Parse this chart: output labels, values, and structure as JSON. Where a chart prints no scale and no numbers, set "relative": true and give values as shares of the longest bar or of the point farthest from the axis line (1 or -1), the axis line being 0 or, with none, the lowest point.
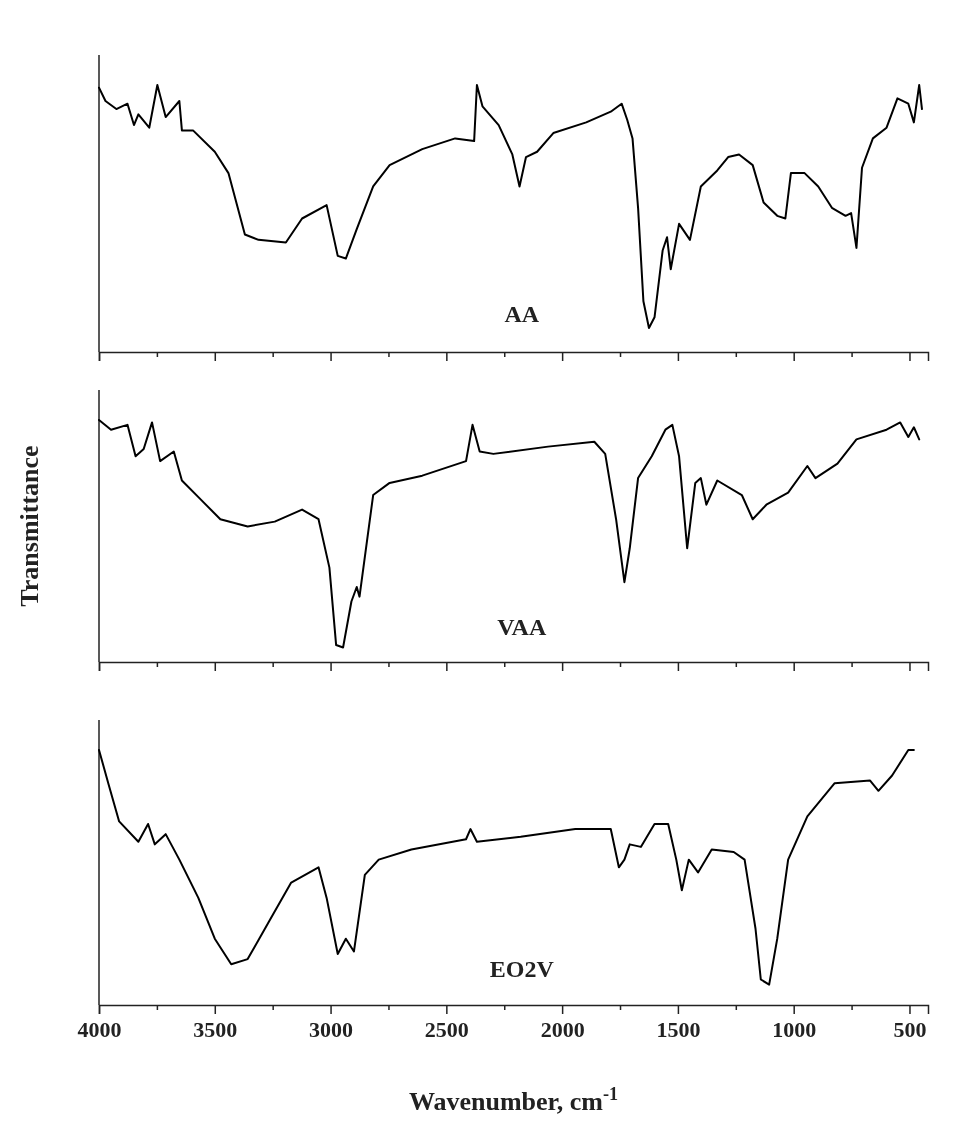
{
  "chart_data": [
    {
      "type": "line",
      "relative": true,
      "tick_labels": false,
      "xlim": [
        4000,
        420
      ],
      "xticks": [
        4000,
        {
          "value": 3750,
          "label": null
        },
        3500,
        {
          "value": 3250,
          "label": null
        },
        3000,
        {
          "value": 2750,
          "label": null
        },
        2500,
        {
          "value": 2250,
          "label": null
        },
        2000,
        {
          "value": 1750,
          "label": null
        },
        1500,
        {
          "value": 1250,
          "label": null
        },
        1000,
        {
          "value": 750,
          "label": null
        },
        500
      ],
      "x": [
        4000,
        3972,
        3925,
        3877,
        3849,
        3830,
        3783,
        3748,
        3712,
        3653,
        3642,
        3594,
        3500,
        3441,
        3370,
        3311,
        3193,
        3123,
        3017,
        2969,
        2934,
        2887,
        2816,
        2745,
        2604,
        2462,
        2380,
        2368,
        2344,
        2274,
        2215,
        2184,
        2156,
        2108,
        2038,
        1896,
        1790,
        1743,
        1719,
        1696,
        1672,
        1649,
        1625,
        1601,
        1566,
        1547,
        1531,
        1495,
        1448,
        1401,
        1330,
        1283,
        1236,
        1177,
        1130,
        1071,
        1036,
        1012,
        953,
        894,
        835,
        776,
        752,
        729,
        705,
        658,
        599,
        552,
        505,
        481,
        458,
        446
      ],
      "series": [
        {
          "name": "AA",
          "color": "#000000",
          "values": [
            0.99,
            0.94,
            0.91,
            0.93,
            0.85,
            0.89,
            0.84,
            1.0,
            0.88,
            0.94,
            0.83,
            0.83,
            0.75,
            0.67,
            0.44,
            0.42,
            0.41,
            0.5,
            0.55,
            0.36,
            0.35,
            0.46,
            0.62,
            0.7,
            0.76,
            0.8,
            0.79,
            1.0,
            0.92,
            0.85,
            0.74,
            0.62,
            0.73,
            0.75,
            0.82,
            0.86,
            0.9,
            0.93,
            0.87,
            0.8,
            0.54,
            0.19,
            0.09,
            0.13,
            0.38,
            0.43,
            0.31,
            0.48,
            0.42,
            0.62,
            0.68,
            0.73,
            0.74,
            0.7,
            0.56,
            0.51,
            0.5,
            0.67,
            0.67,
            0.62,
            0.54,
            0.51,
            0.52,
            0.39,
            0.69,
            0.8,
            0.84,
            0.95,
            0.93,
            0.86,
            1.0,
            0.91
          ]
        }
      ]
    },
    {
      "type": "line",
      "relative": true,
      "tick_labels": false,
      "xlim": [
        4000,
        420
      ],
      "ylabel": "Transmittance",
      "xticks": [
        4000,
        {
          "value": 3750,
          "label": null
        },
        3500,
        {
          "value": 3250,
          "label": null
        },
        3000,
        {
          "value": 2750,
          "label": null
        },
        2500,
        {
          "value": 2250,
          "label": null
        },
        2000,
        {
          "value": 1750,
          "label": null
        },
        1500,
        {
          "value": 1250,
          "label": null
        },
        1000,
        {
          "value": 750,
          "label": null
        },
        500
      ],
      "x": [
        4000,
        3948,
        3877,
        3842,
        3807,
        3771,
        3736,
        3677,
        3642,
        3559,
        3476,
        3358,
        3241,
        3123,
        3052,
        3005,
        2976,
        2946,
        2910,
        2887,
        2875,
        2816,
        2745,
        2604,
        2415,
        2387,
        2356,
        2297,
        2061,
        1861,
        1814,
        1767,
        1731,
        1708,
        1672,
        1613,
        1554,
        1524,
        1495,
        1460,
        1425,
        1401,
        1377,
        1330,
        1224,
        1177,
        1118,
        1024,
        941,
        906,
        811,
        729,
        599,
        540,
        505,
        481,
        458
      ],
      "series": [
        {
          "name": "VAA",
          "color": "#000000",
          "values": [
            1.0,
            0.96,
            0.98,
            0.85,
            0.88,
            0.99,
            0.83,
            0.87,
            0.75,
            0.67,
            0.59,
            0.56,
            0.58,
            0.63,
            0.59,
            0.39,
            0.07,
            0.06,
            0.25,
            0.31,
            0.27,
            0.69,
            0.74,
            0.77,
            0.83,
            0.98,
            0.87,
            0.86,
            0.89,
            0.91,
            0.86,
            0.59,
            0.33,
            0.47,
            0.76,
            0.85,
            0.96,
            0.98,
            0.85,
            0.47,
            0.74,
            0.76,
            0.65,
            0.75,
            0.69,
            0.59,
            0.65,
            0.7,
            0.81,
            0.76,
            0.82,
            0.92,
            0.96,
            0.99,
            0.93,
            0.97,
            0.92
          ]
        }
      ]
    },
    {
      "type": "line",
      "relative": true,
      "tick_labels": "x",
      "xlim": [
        4000,
        420
      ],
      "xlabel": "Wavenumber, cm$^{-1}$",
      "xticks": [
        4000,
        {
          "value": 3750,
          "label": null
        },
        3500,
        {
          "value": 3250,
          "label": null
        },
        3000,
        {
          "value": 2750,
          "label": null
        },
        2500,
        {
          "value": 2250,
          "label": null
        },
        2000,
        {
          "value": 1750,
          "label": null
        },
        1500,
        {
          "value": 1250,
          "label": null
        },
        1000,
        {
          "value": 750,
          "label": null
        },
        500
      ],
      "x": [
        4000,
        3960,
        3913,
        3830,
        3788,
        3759,
        3712,
        3653,
        3571,
        3500,
        3429,
        3358,
        3264,
        3170,
        3052,
        3017,
        2969,
        2934,
        2899,
        2852,
        2792,
        2651,
        2415,
        2396,
        2368,
        2179,
        1943,
        1790,
        1755,
        1731,
        1708,
        1660,
        1601,
        1542,
        1507,
        1483,
        1453,
        1413,
        1354,
        1259,
        1212,
        1165,
        1142,
        1106,
        1071,
        1024,
        941,
        823,
        670,
        634,
        575,
        505,
        481
      ],
      "series": [
        {
          "name": "EO2V",
          "color": "#000000",
          "values": [
            1.0,
            0.87,
            0.72,
            0.64,
            0.71,
            0.63,
            0.67,
            0.57,
            0.42,
            0.26,
            0.16,
            0.18,
            0.33,
            0.48,
            0.54,
            0.42,
            0.2,
            0.26,
            0.21,
            0.51,
            0.57,
            0.61,
            0.65,
            0.69,
            0.64,
            0.66,
            0.69,
            0.69,
            0.54,
            0.57,
            0.63,
            0.62,
            0.71,
            0.71,
            0.57,
            0.45,
            0.57,
            0.52,
            0.61,
            0.6,
            0.57,
            0.3,
            0.1,
            0.08,
            0.26,
            0.57,
            0.74,
            0.87,
            0.88,
            0.84,
            0.9,
            1.0,
            1.0
          ]
        }
      ]
    }
  ]
}
